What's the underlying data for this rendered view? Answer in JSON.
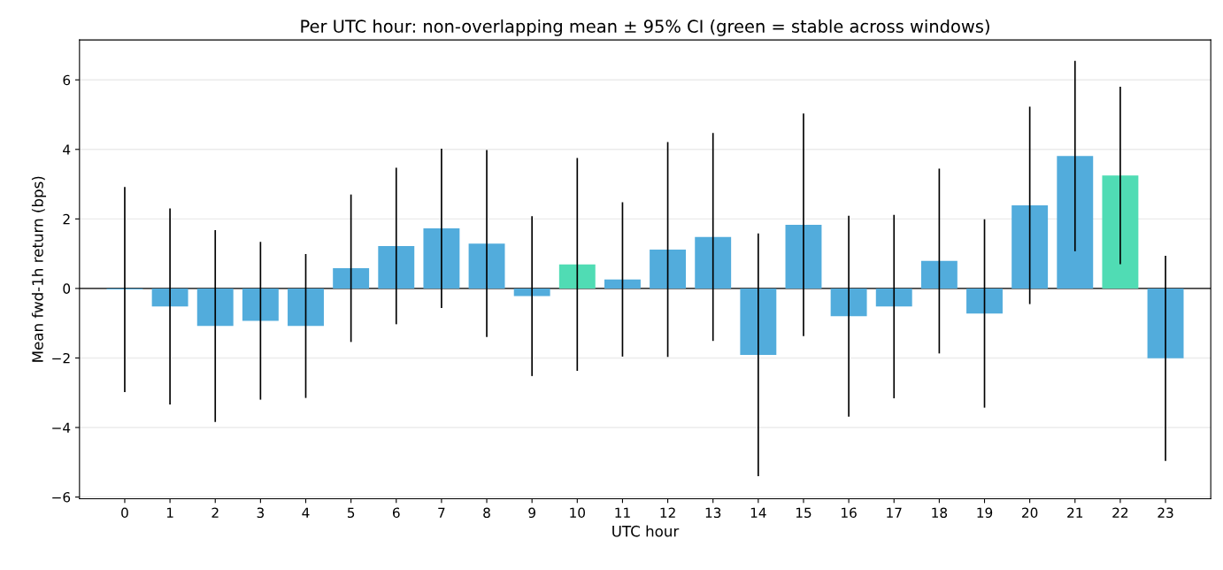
{
  "chart_data": {
    "type": "bar",
    "title": "Per UTC hour: non-overlapping mean ± 95% CI (green = stable across windows)",
    "xlabel": "UTC hour",
    "ylabel": "Mean fwd-1h return (bps)",
    "categories": [
      "0",
      "1",
      "2",
      "3",
      "4",
      "5",
      "6",
      "7",
      "8",
      "9",
      "10",
      "11",
      "12",
      "13",
      "14",
      "15",
      "16",
      "17",
      "18",
      "19",
      "20",
      "21",
      "22",
      "23"
    ],
    "values": [
      -0.03,
      -0.52,
      -1.08,
      -0.93,
      -1.08,
      0.58,
      1.22,
      1.73,
      1.29,
      -0.22,
      0.69,
      0.26,
      1.12,
      1.48,
      -1.91,
      1.83,
      -0.8,
      -0.52,
      0.79,
      -0.72,
      2.39,
      3.81,
      3.25,
      -2.01
    ],
    "errors": [
      2.95,
      2.82,
      2.76,
      2.27,
      2.07,
      2.12,
      2.25,
      2.29,
      2.69,
      2.3,
      3.06,
      2.22,
      3.09,
      2.99,
      3.49,
      3.2,
      2.89,
      2.64,
      2.66,
      2.71,
      2.84,
      2.74,
      2.55,
      2.95
    ],
    "colors": [
      "#52acdc",
      "#52acdc",
      "#52acdc",
      "#52acdc",
      "#52acdc",
      "#52acdc",
      "#52acdc",
      "#52acdc",
      "#52acdc",
      "#52acdc",
      "#50dcb4",
      "#52acdc",
      "#52acdc",
      "#52acdc",
      "#52acdc",
      "#52acdc",
      "#52acdc",
      "#52acdc",
      "#52acdc",
      "#52acdc",
      "#52acdc",
      "#52acdc",
      "#50dcb4",
      "#52acdc"
    ],
    "ylim": [
      -6.05,
      7.15
    ],
    "yticks": [
      {
        "value": -6,
        "label": "−6"
      },
      {
        "value": -4,
        "label": "−4"
      },
      {
        "value": -2,
        "label": "−2"
      },
      0,
      2,
      4,
      6
    ],
    "ref_lines": [
      {
        "axis": "y",
        "value": 0,
        "color": "#000000"
      }
    ],
    "grid": "y"
  }
}
